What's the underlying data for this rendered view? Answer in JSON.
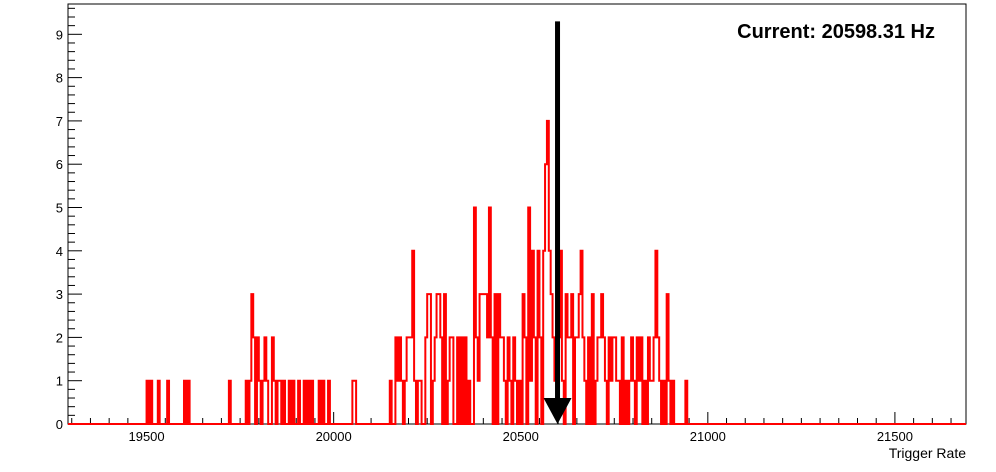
{
  "chart_data": {
    "type": "histogram",
    "title": "",
    "xlabel": "Trigger Rate",
    "ylabel": "",
    "xlim": [
      19290,
      21690
    ],
    "ylim": [
      0,
      9.7
    ],
    "x_ticks": [
      19500,
      20000,
      20500,
      21000,
      21500
    ],
    "y_ticks": [
      0,
      1,
      2,
      3,
      4,
      5,
      6,
      7,
      8,
      9
    ],
    "grid": false,
    "legend": "none",
    "series": [
      {
        "color": "#ff0000",
        "bin_width": 5,
        "bins": [
          [
            19500,
            1
          ],
          [
            19510,
            1
          ],
          [
            19530,
            1
          ],
          [
            19555,
            1
          ],
          [
            19600,
            1
          ],
          [
            19610,
            1
          ],
          [
            19720,
            1
          ],
          [
            19765,
            1
          ],
          [
            19775,
            1
          ],
          [
            19780,
            3
          ],
          [
            19785,
            2
          ],
          [
            19795,
            2
          ],
          [
            19800,
            1
          ],
          [
            19810,
            1
          ],
          [
            19815,
            2
          ],
          [
            19820,
            1
          ],
          [
            19835,
            2
          ],
          [
            19840,
            1
          ],
          [
            19850,
            1
          ],
          [
            19855,
            1
          ],
          [
            19865,
            1
          ],
          [
            19880,
            1
          ],
          [
            19890,
            1
          ],
          [
            19905,
            1
          ],
          [
            19920,
            1
          ],
          [
            19930,
            1
          ],
          [
            19940,
            1
          ],
          [
            19960,
            1
          ],
          [
            19970,
            1
          ],
          [
            19985,
            1
          ],
          [
            20050,
            1
          ],
          [
            20055,
            1
          ],
          [
            20150,
            1
          ],
          [
            20165,
            2
          ],
          [
            20170,
            1
          ],
          [
            20175,
            2
          ],
          [
            20180,
            1
          ],
          [
            20190,
            1
          ],
          [
            20195,
            2
          ],
          [
            20200,
            2
          ],
          [
            20205,
            2
          ],
          [
            20210,
            4
          ],
          [
            20215,
            1
          ],
          [
            20225,
            1
          ],
          [
            20230,
            1
          ],
          [
            20245,
            2
          ],
          [
            20250,
            3
          ],
          [
            20255,
            3
          ],
          [
            20265,
            1
          ],
          [
            20270,
            2
          ],
          [
            20275,
            3
          ],
          [
            20280,
            3
          ],
          [
            20285,
            2
          ],
          [
            20295,
            3
          ],
          [
            20305,
            1
          ],
          [
            20310,
            2
          ],
          [
            20315,
            2
          ],
          [
            20330,
            2
          ],
          [
            20340,
            2
          ],
          [
            20350,
            2
          ],
          [
            20360,
            1
          ],
          [
            20375,
            5
          ],
          [
            20380,
            2
          ],
          [
            20385,
            1
          ],
          [
            20390,
            3
          ],
          [
            20395,
            3
          ],
          [
            20400,
            3
          ],
          [
            20405,
            3
          ],
          [
            20410,
            2
          ],
          [
            20415,
            5
          ],
          [
            20420,
            2
          ],
          [
            20430,
            3
          ],
          [
            20440,
            3
          ],
          [
            20445,
            2
          ],
          [
            20450,
            2
          ],
          [
            20455,
            1
          ],
          [
            20465,
            2
          ],
          [
            20470,
            1
          ],
          [
            20480,
            2
          ],
          [
            20485,
            1
          ],
          [
            20495,
            1
          ],
          [
            20505,
            3
          ],
          [
            20510,
            2
          ],
          [
            20520,
            5
          ],
          [
            20525,
            1
          ],
          [
            20530,
            4
          ],
          [
            20535,
            2
          ],
          [
            20545,
            4
          ],
          [
            20550,
            2
          ],
          [
            20560,
            4
          ],
          [
            20565,
            6
          ],
          [
            20570,
            7
          ],
          [
            20575,
            4
          ],
          [
            20580,
            3
          ],
          [
            20585,
            2
          ],
          [
            20590,
            1
          ],
          [
            20595,
            2
          ],
          [
            20600,
            2
          ],
          [
            20605,
            4
          ],
          [
            20610,
            1
          ],
          [
            20620,
            3
          ],
          [
            20625,
            2
          ],
          [
            20630,
            2
          ],
          [
            20635,
            3
          ],
          [
            20645,
            2
          ],
          [
            20650,
            2
          ],
          [
            20655,
            3
          ],
          [
            20660,
            4
          ],
          [
            20665,
            2
          ],
          [
            20670,
            1
          ],
          [
            20680,
            2
          ],
          [
            20690,
            3
          ],
          [
            20700,
            1
          ],
          [
            20705,
            2
          ],
          [
            20710,
            2
          ],
          [
            20715,
            3
          ],
          [
            20720,
            2
          ],
          [
            20725,
            1
          ],
          [
            20735,
            2
          ],
          [
            20740,
            1
          ],
          [
            20745,
            2
          ],
          [
            20750,
            2
          ],
          [
            20755,
            1
          ],
          [
            20760,
            1
          ],
          [
            20770,
            2
          ],
          [
            20780,
            1
          ],
          [
            20790,
            1
          ],
          [
            20795,
            2
          ],
          [
            20800,
            1
          ],
          [
            20810,
            2
          ],
          [
            20815,
            1
          ],
          [
            20820,
            2
          ],
          [
            20830,
            1
          ],
          [
            20840,
            2
          ],
          [
            20845,
            1
          ],
          [
            20850,
            1
          ],
          [
            20855,
            2
          ],
          [
            20860,
            4
          ],
          [
            20865,
            2
          ],
          [
            20870,
            1
          ],
          [
            20880,
            1
          ],
          [
            20890,
            3
          ],
          [
            20895,
            1
          ],
          [
            20905,
            1
          ],
          [
            20940,
            1
          ]
        ]
      }
    ],
    "annotations": [
      {
        "type": "text",
        "text": "Current: 20598.31 Hz",
        "placement": "top-right"
      },
      {
        "type": "arrow",
        "x": 20598.31,
        "direction": "down",
        "color": "#000000",
        "y_from": 9.3,
        "y_to": 0
      }
    ]
  }
}
